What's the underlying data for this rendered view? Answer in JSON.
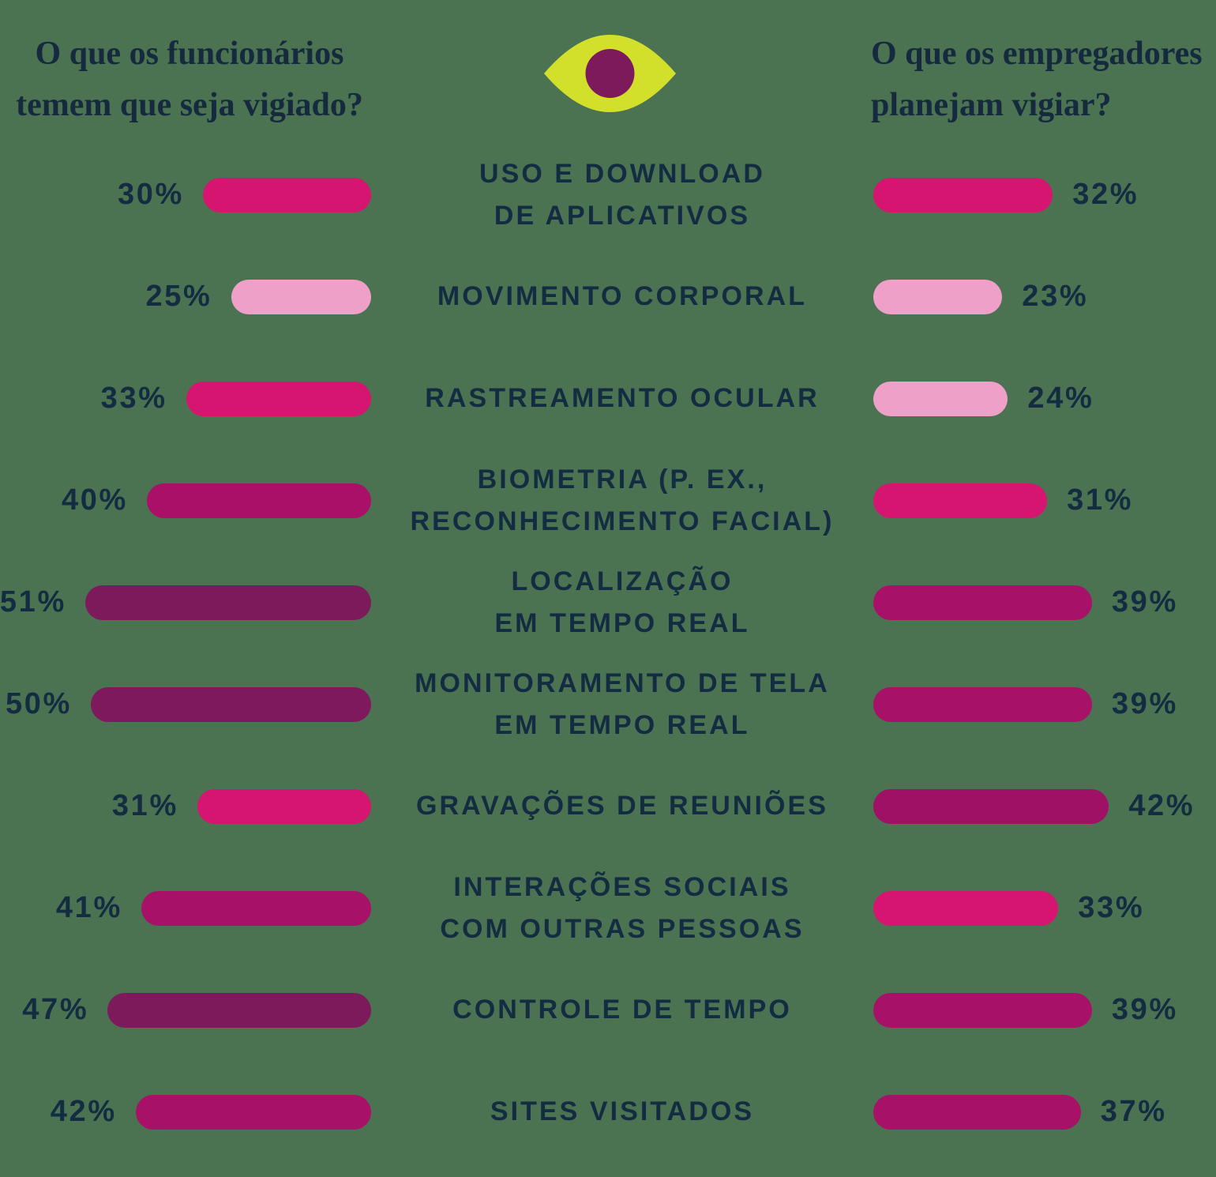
{
  "page": {
    "background_color": "#4b7251",
    "text_color": "#132c42"
  },
  "header": {
    "left_title": "O que os funcionários temem que seja vigiado?",
    "right_title": "O que os empregadores planejam vigiar?",
    "eye_icon": {
      "iris_color": "#d3e02b",
      "pupil_color": "#7c1a5c"
    }
  },
  "chart_data": {
    "type": "bar",
    "variant": "diverging horizontal (butterfly), bars grow outward from center labels",
    "unit": "%",
    "xlim": [
      0,
      51
    ],
    "grid": false,
    "legend": "none",
    "categories": [
      "USO E DOWNLOAD DE APLICATIVOS",
      "MOVIMENTO CORPORAL",
      "RASTREAMENTO OCULAR",
      "BIOMETRIA (P. EX., RECONHECIMENTO FACIAL)",
      "LOCALIZAÇÃO EM TEMPO REAL",
      "MONITORAMENTO DE TELA EM TEMPO REAL",
      "GRAVAÇÕES DE REUNIÕES",
      "INTERAÇÕES SOCIAIS COM OUTRAS PESSOAS",
      "CONTROLE DE TEMPO",
      "SITES VISITADOS"
    ],
    "series": [
      {
        "name": "O que os funcionários temem que seja vigiado?",
        "side": "left",
        "values": [
          30,
          25,
          33,
          40,
          51,
          50,
          31,
          41,
          47,
          42
        ]
      },
      {
        "name": "O que os empregadores planejam vigiar?",
        "side": "right",
        "values": [
          32,
          23,
          24,
          31,
          39,
          39,
          42,
          33,
          39,
          37
        ]
      }
    ],
    "color_scale_note": "lighter pink = lower %, deep plum = higher %",
    "rows": [
      {
        "label_lines": [
          "USO E DOWNLOAD",
          "DE APLICATIVOS"
        ],
        "left": {
          "value": 30,
          "label": "30%",
          "color": "#d5156f"
        },
        "right": {
          "value": 32,
          "label": "32%",
          "color": "#d5156f"
        }
      },
      {
        "label_lines": [
          "MOVIMENTO CORPORAL"
        ],
        "left": {
          "value": 25,
          "label": "25%",
          "color": "#efa0c8"
        },
        "right": {
          "value": 23,
          "label": "23%",
          "color": "#efa0c8"
        }
      },
      {
        "label_lines": [
          "RASTREAMENTO OCULAR"
        ],
        "left": {
          "value": 33,
          "label": "33%",
          "color": "#d5156f"
        },
        "right": {
          "value": 24,
          "label": "24%",
          "color": "#efa0c8"
        }
      },
      {
        "label_lines": [
          "BIOMETRIA (P. EX.,",
          "RECONHECIMENTO FACIAL)"
        ],
        "left": {
          "value": 40,
          "label": "40%",
          "color": "#aa1067"
        },
        "right": {
          "value": 31,
          "label": "31%",
          "color": "#d5156f"
        }
      },
      {
        "label_lines": [
          "LOCALIZAÇÃO",
          "EM TEMPO REAL"
        ],
        "left": {
          "value": 51,
          "label": "51%",
          "color": "#7c1a5c"
        },
        "right": {
          "value": 39,
          "label": "39%",
          "color": "#a81168"
        }
      },
      {
        "label_lines": [
          "MONITORAMENTO DE TELA",
          "EM TEMPO REAL"
        ],
        "left": {
          "value": 50,
          "label": "50%",
          "color": "#7f195d"
        },
        "right": {
          "value": 39,
          "label": "39%",
          "color": "#a81168"
        }
      },
      {
        "label_lines": [
          "GRAVAÇÕES DE REUNIÕES"
        ],
        "left": {
          "value": 31,
          "label": "31%",
          "color": "#d5156f"
        },
        "right": {
          "value": 42,
          "label": "42%",
          "color": "#9e1165"
        }
      },
      {
        "label_lines": [
          "INTERAÇÕES SOCIAIS",
          "COM OUTRAS PESSOAS"
        ],
        "left": {
          "value": 41,
          "label": "41%",
          "color": "#a81168"
        },
        "right": {
          "value": 33,
          "label": "33%",
          "color": "#d5156f"
        }
      },
      {
        "label_lines": [
          "CONTROLE DE TEMPO"
        ],
        "left": {
          "value": 47,
          "label": "47%",
          "color": "#7c1a5c"
        },
        "right": {
          "value": 39,
          "label": "39%",
          "color": "#a81168"
        }
      },
      {
        "label_lines": [
          "SITES VISITADOS"
        ],
        "left": {
          "value": 42,
          "label": "42%",
          "color": "#a81168"
        },
        "right": {
          "value": 37,
          "label": "37%",
          "color": "#a81168"
        }
      }
    ]
  }
}
